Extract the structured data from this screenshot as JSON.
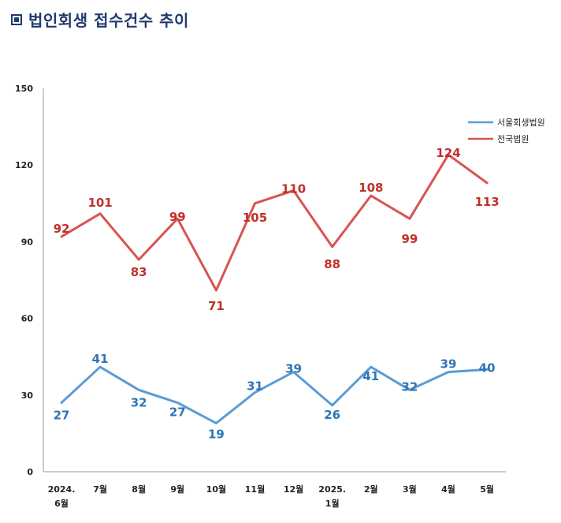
{
  "header": {
    "title": "법인회생 접수건수 추이"
  },
  "chart_data": {
    "type": "line",
    "title": "",
    "xlabel": "",
    "ylabel": "",
    "ylim": [
      0,
      150
    ],
    "yticks": [
      0,
      30,
      60,
      90,
      120,
      150
    ],
    "grid": false,
    "legend_position": "top-right",
    "categories": [
      [
        "2024.",
        "6월"
      ],
      [
        "7월"
      ],
      [
        "8월"
      ],
      [
        "9월"
      ],
      [
        "10월"
      ],
      [
        "11월"
      ],
      [
        "12월"
      ],
      [
        "2025.",
        "1월"
      ],
      [
        "2월"
      ],
      [
        "3월"
      ],
      [
        "4월"
      ],
      [
        "5월"
      ]
    ],
    "series": [
      {
        "name": "서울회생법원",
        "color": "#5b9bd5",
        "label_color": "#2e75b6",
        "values": [
          27,
          41,
          32,
          27,
          19,
          31,
          39,
          26,
          41,
          32,
          39,
          40
        ]
      },
      {
        "name": "전국법원",
        "color": "#d9534f",
        "label_color": "#c0302b",
        "values": [
          92,
          101,
          83,
          99,
          71,
          105,
          110,
          88,
          108,
          99,
          124,
          113
        ]
      }
    ]
  }
}
